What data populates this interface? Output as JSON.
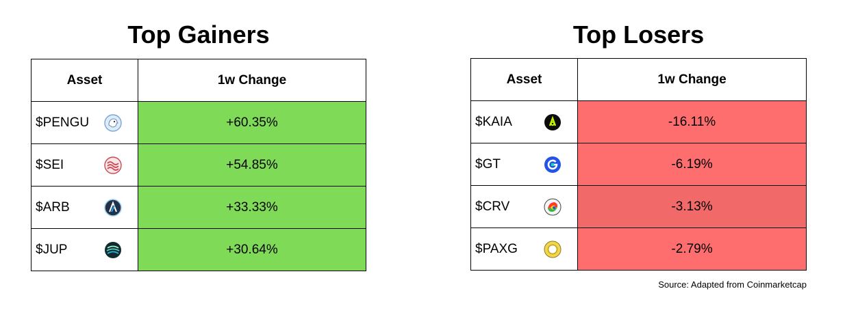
{
  "gainers": {
    "title": "Top Gainers",
    "headers": {
      "asset": "Asset",
      "change": "1w Change"
    },
    "rows": [
      {
        "asset": "$PENGU",
        "icon": "pengu-icon",
        "change": "+60.35%",
        "color": "#7fda58"
      },
      {
        "asset": "$SEI",
        "icon": "sei-icon",
        "change": "+54.85%",
        "color": "#7fda58"
      },
      {
        "asset": "$ARB",
        "icon": "arb-icon",
        "change": "+33.33%",
        "color": "#7fda58"
      },
      {
        "asset": "$JUP",
        "icon": "jup-icon",
        "change": "+30.64%",
        "color": "#7fda58"
      }
    ]
  },
  "losers": {
    "title": "Top Losers",
    "headers": {
      "asset": "Asset",
      "change": "1w Change"
    },
    "rows": [
      {
        "asset": "$KAIA",
        "icon": "kaia-icon",
        "change": "-16.11%",
        "color": "#ff6e6e"
      },
      {
        "asset": "$GT",
        "icon": "gt-icon",
        "change": "-6.19%",
        "color": "#ff6e6e"
      },
      {
        "asset": "$CRV",
        "icon": "crv-icon",
        "change": "-3.13%",
        "color": "#f26969"
      },
      {
        "asset": "$PAXG",
        "icon": "paxg-icon",
        "change": "-2.79%",
        "color": "#ff6e6e"
      }
    ]
  },
  "source": "Source: Adapted from Coinmarketcap"
}
